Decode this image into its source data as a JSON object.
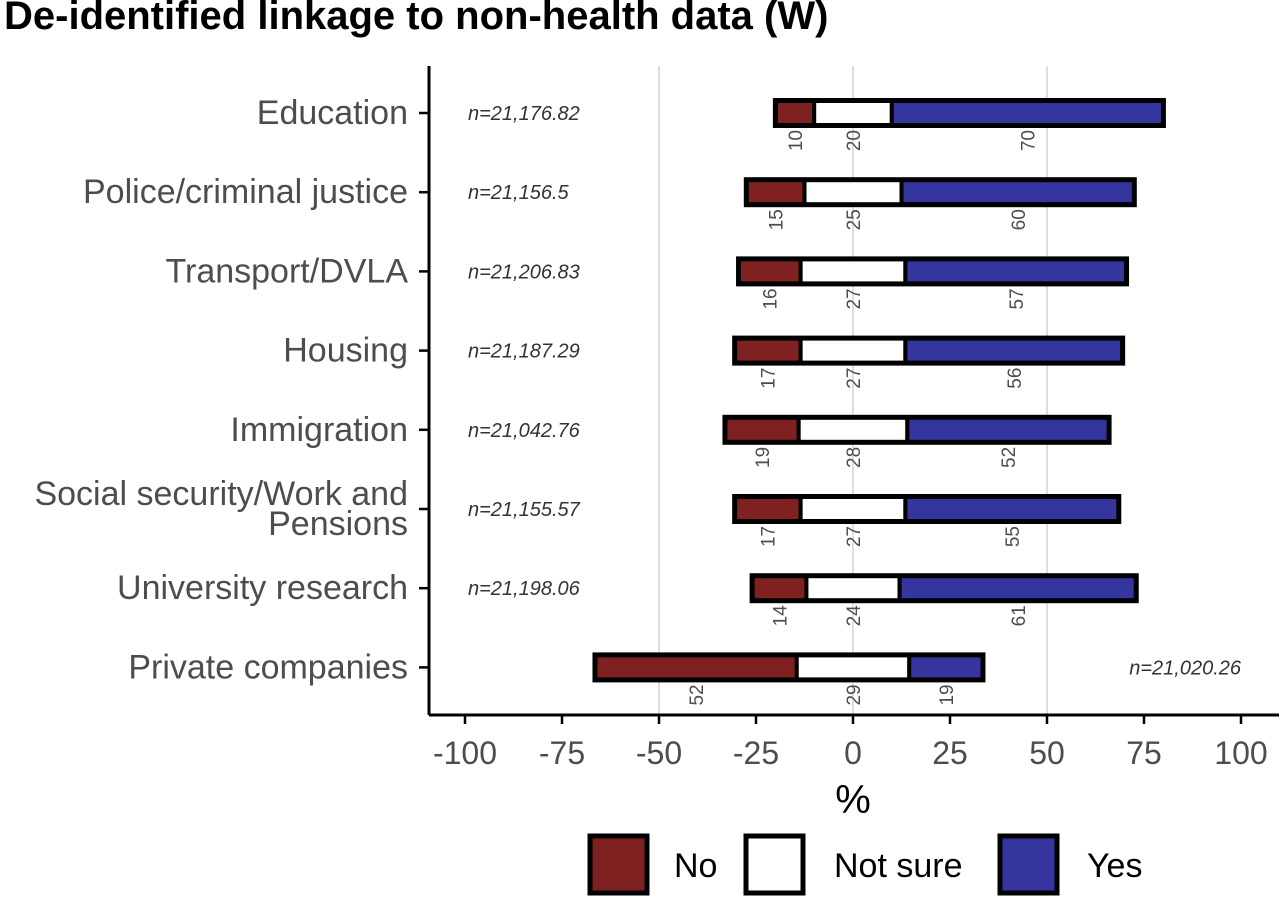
{
  "title": "De-identified linkage to non-health data (W)",
  "chart_data": {
    "type": "bar",
    "orientation": "horizontal",
    "diverging": true,
    "title": "De-identified linkage to non-health data (W)",
    "xlabel": "%",
    "ylabel": "",
    "xlim": [
      -100,
      100
    ],
    "xticks": [
      -100,
      -75,
      -50,
      -25,
      0,
      25,
      50,
      75,
      100
    ],
    "grid_major_x": [
      -50,
      0,
      50
    ],
    "legend_position": "bottom",
    "categories": [
      {
        "label": [
          "Education"
        ],
        "n": "n=21,176.82",
        "n_side": "left"
      },
      {
        "label": [
          "Police/criminal justice"
        ],
        "n": "n=21,156.5",
        "n_side": "left"
      },
      {
        "label": [
          "Transport/DVLA"
        ],
        "n": "n=21,206.83",
        "n_side": "left"
      },
      {
        "label": [
          "Housing"
        ],
        "n": "n=21,187.29",
        "n_side": "left"
      },
      {
        "label": [
          "Immigration"
        ],
        "n": "n=21,042.76",
        "n_side": "left"
      },
      {
        "label": [
          "Social security/Work and",
          "Pensions"
        ],
        "n": "n=21,155.57",
        "n_side": "left"
      },
      {
        "label": [
          "University research"
        ],
        "n": "n=21,198.06",
        "n_side": "left"
      },
      {
        "label": [
          "Private companies"
        ],
        "n": "n=21,020.26",
        "n_side": "right"
      }
    ],
    "series": [
      {
        "name": "No",
        "color": "#7f2121",
        "values": [
          10,
          15,
          16,
          17,
          19,
          17,
          14,
          52
        ]
      },
      {
        "name": "Not sure",
        "color": "#ffffff",
        "values": [
          20,
          25,
          27,
          27,
          28,
          27,
          24,
          29
        ]
      },
      {
        "name": "Yes",
        "color": "#3535a0",
        "values": [
          70,
          60,
          57,
          56,
          52,
          55,
          61,
          19
        ]
      }
    ]
  }
}
